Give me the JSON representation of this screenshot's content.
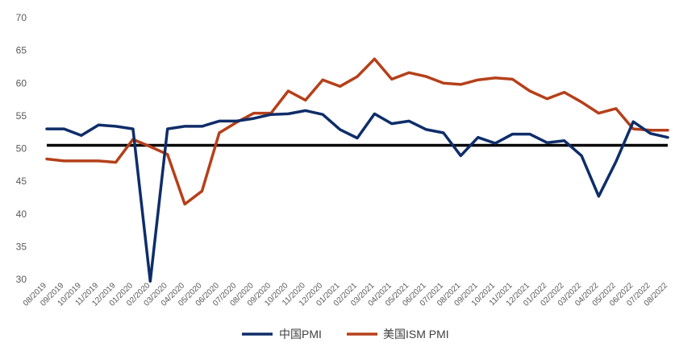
{
  "chart_data": {
    "type": "line",
    "title": "",
    "xlabel": "",
    "ylabel": "",
    "ylim": [
      30,
      70
    ],
    "yticks": [
      30,
      35,
      40,
      45,
      50,
      55,
      60,
      65,
      70
    ],
    "grid": false,
    "legend_position": "bottom",
    "categories": [
      "08/2019",
      "09/2019",
      "10/2019",
      "11/2019",
      "12/2019",
      "01/2020",
      "02/2020",
      "03/2020",
      "04/2020",
      "05/2020",
      "06/2020",
      "07/2020",
      "08/2020",
      "09/2020",
      "10/2020",
      "11/2020",
      "12/2020",
      "01/2021",
      "02/2021",
      "03/2021",
      "04/2021",
      "05/2021",
      "06/2021",
      "07/2021",
      "08/2021",
      "09/2021",
      "10/2021",
      "11/2021",
      "12/2021",
      "01/2022",
      "02/2022",
      "03/2022",
      "04/2022",
      "05/2022",
      "06/2022",
      "07/2022",
      "08/2022"
    ],
    "series": [
      {
        "name": "中国PMI",
        "color": "#0f2d69",
        "values": [
          53.0,
          53.0,
          52.0,
          53.6,
          53.4,
          53.0,
          29.7,
          53.0,
          53.4,
          53.4,
          54.2,
          54.2,
          54.6,
          55.2,
          55.3,
          55.8,
          55.2,
          52.9,
          51.6,
          55.3,
          53.8,
          54.2,
          52.9,
          52.4,
          48.9,
          51.7,
          50.8,
          52.2,
          52.2,
          50.9,
          51.2,
          48.9,
          42.7,
          48.0,
          54.1,
          52.3,
          51.7
        ]
      },
      {
        "name": "美国ISM PMI",
        "color": "#b5401a",
        "values": [
          48.4,
          48.1,
          48.1,
          48.1,
          47.9,
          51.4,
          50.3,
          49.1,
          41.5,
          43.5,
          52.4,
          54.0,
          55.4,
          55.4,
          58.8,
          57.4,
          60.5,
          59.5,
          61.0,
          63.7,
          60.6,
          61.6,
          61.0,
          60.0,
          59.8,
          60.5,
          60.8,
          60.6,
          58.8,
          57.6,
          58.6,
          57.1,
          55.4,
          56.1,
          53.0,
          52.8,
          52.8
        ]
      }
    ],
    "reference_line": {
      "value": 50.5,
      "color": "#000000"
    }
  }
}
